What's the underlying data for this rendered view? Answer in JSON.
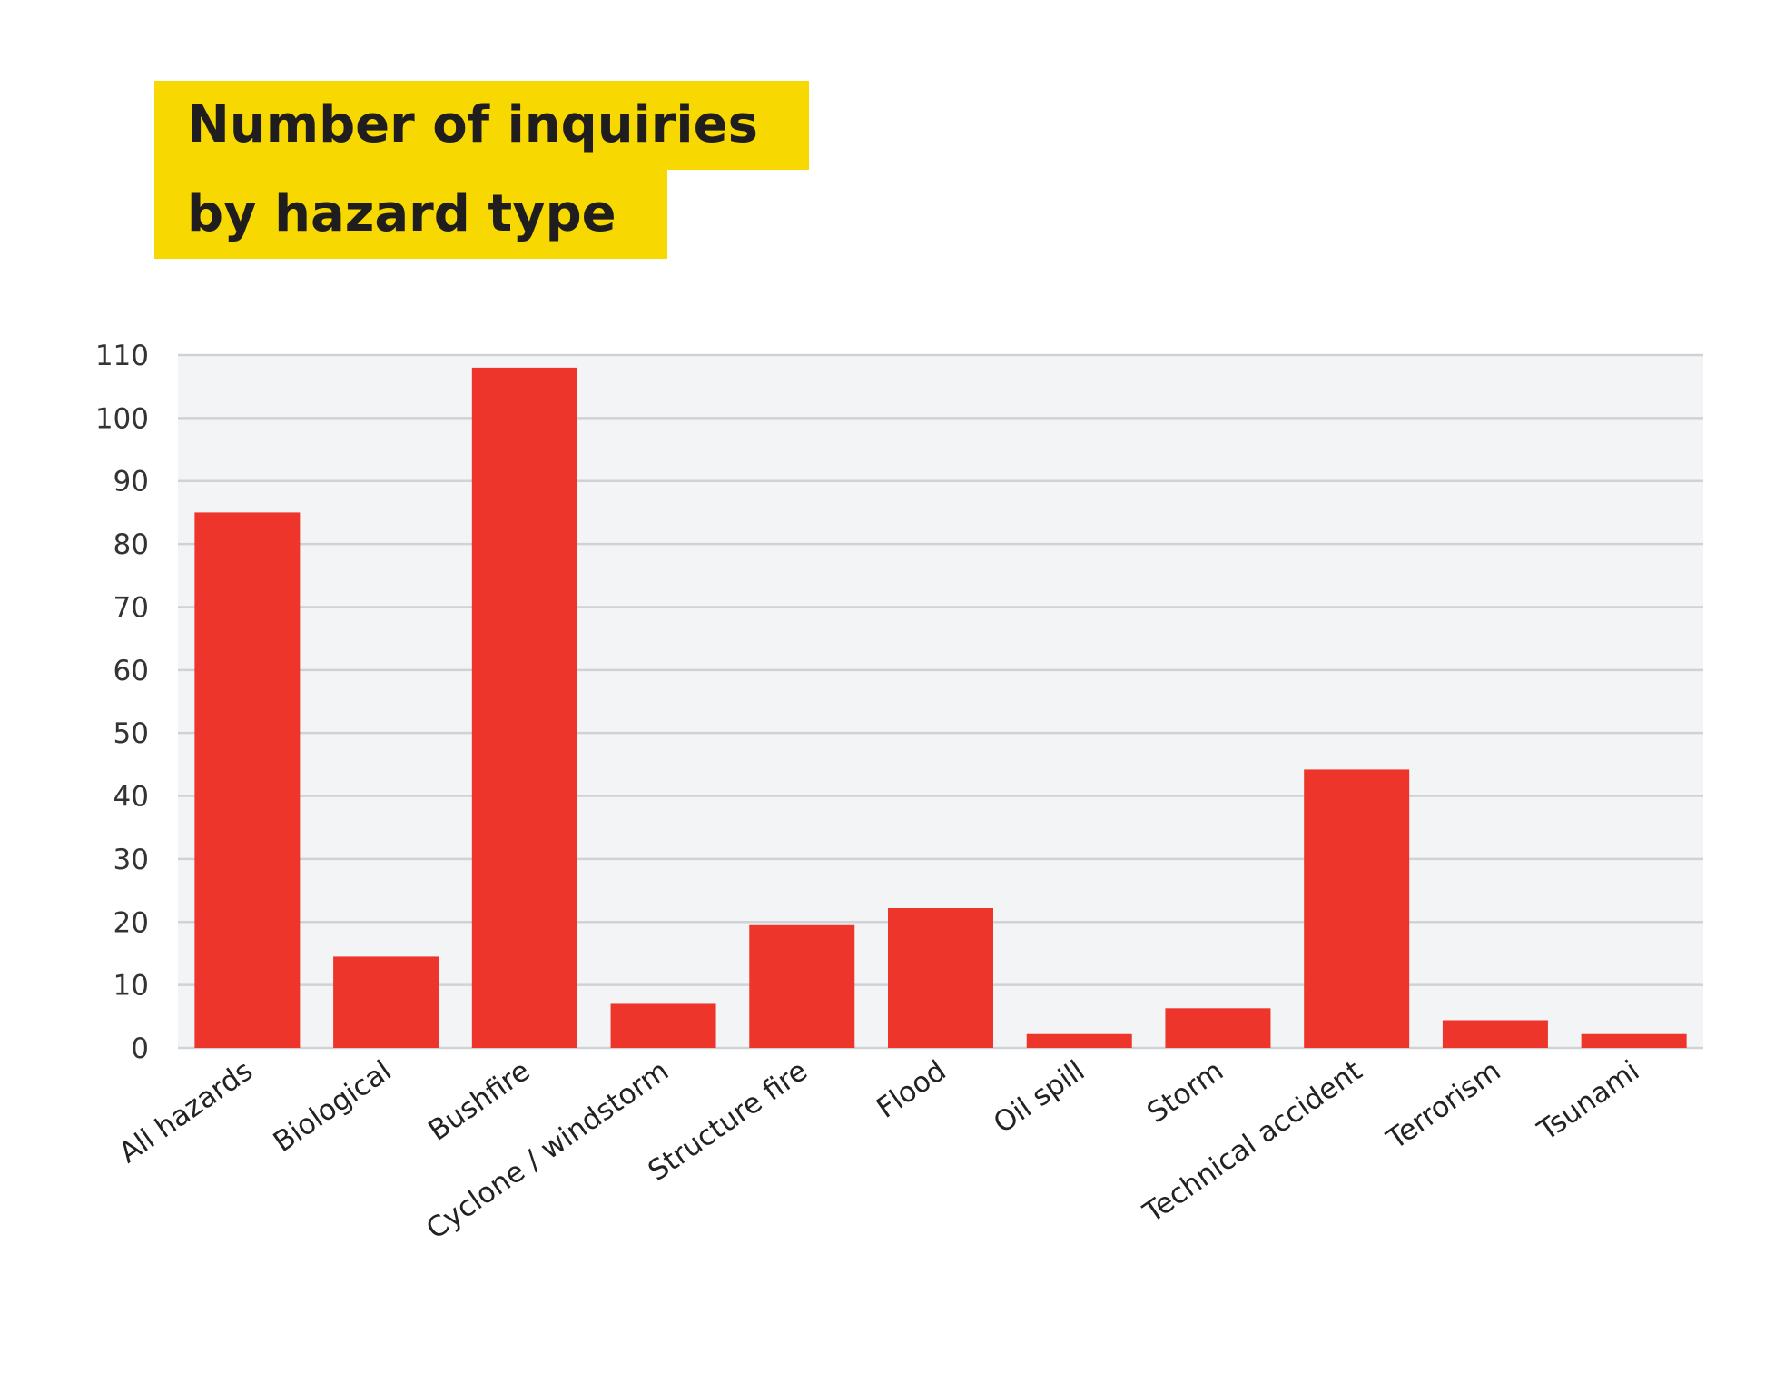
{
  "title_lines": [
    "Number of inquiries",
    "by hazard type"
  ],
  "colors": {
    "bar": "#ee352b",
    "title_highlight": "#f7d800",
    "plot_background": "#f3f4f6",
    "gridline": "#d0d2d6",
    "text": "#1f1d1d"
  },
  "chart_data": {
    "type": "bar",
    "title": "Number of inquiries by hazard type",
    "xlabel": "",
    "ylabel": "",
    "ylim": [
      0,
      110
    ],
    "yticks": [
      0,
      10,
      20,
      30,
      40,
      50,
      60,
      70,
      80,
      90,
      100,
      110
    ],
    "grid": true,
    "legend": "none",
    "categories": [
      "All hazards",
      "Biological",
      "Bushfire",
      "Cyclone / windstorm",
      "Structure fire",
      "Flood",
      "Oil spill",
      "Storm",
      "Technical accident",
      "Terrorism",
      "Tsunami"
    ],
    "values": [
      85,
      14.5,
      108,
      7,
      19.5,
      22.2,
      2.2,
      6.3,
      44.2,
      4.4,
      2.2
    ]
  }
}
